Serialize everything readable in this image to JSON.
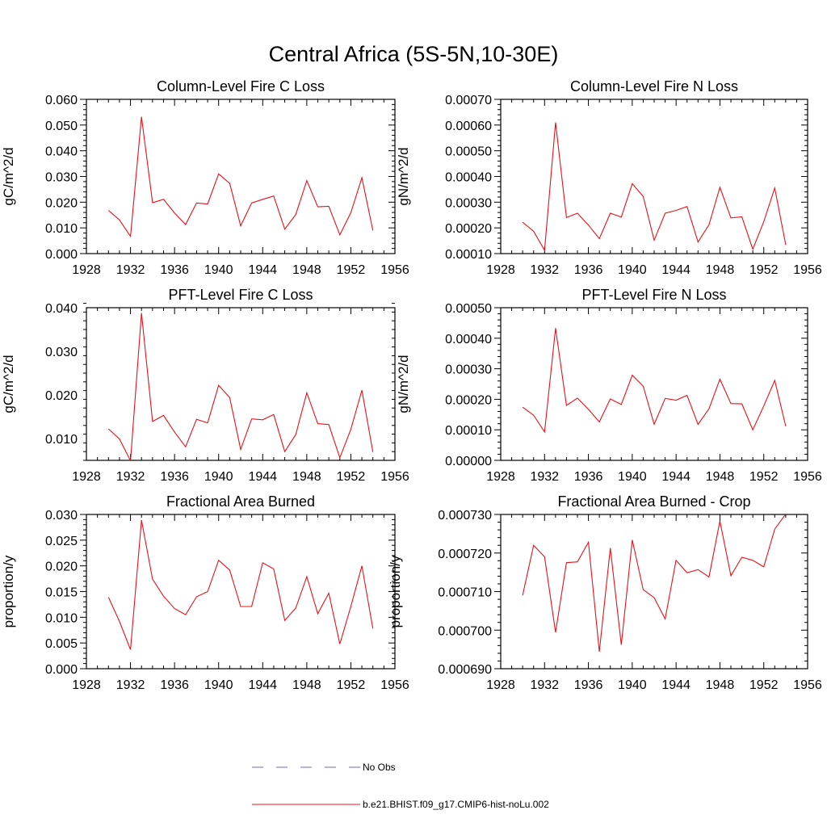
{
  "figure": {
    "title": "Central Africa (5S-5N,10-30E)",
    "series_color": "#e8101a",
    "obs_color": "#6a6ad0"
  },
  "legend": {
    "items": [
      {
        "label": "No Obs",
        "style": "dashed",
        "color": "#6a6ad0"
      },
      {
        "label": "b.e21.BHIST.f09_g17.CMIP6-hist-noLu.002",
        "style": "solid",
        "color": "#e8101a"
      }
    ]
  },
  "chart_data": [
    {
      "type": "line",
      "title": "Column-Level Fire C Loss",
      "ylabel": "gC/m^2/d",
      "xlim": [
        1928,
        1956
      ],
      "ylim": [
        0,
        0.06
      ],
      "xticks": [
        1928,
        1932,
        1936,
        1940,
        1944,
        1948,
        1952,
        1956
      ],
      "yticks": [
        0,
        0.01,
        0.02,
        0.03,
        0.04,
        0.05,
        0.06
      ],
      "ytick_labels": [
        "0.000",
        "0.010",
        "0.020",
        "0.030",
        "0.040",
        "0.050",
        "0.060"
      ],
      "x": [
        1930,
        1931,
        1932,
        1933,
        1934,
        1935,
        1936,
        1937,
        1938,
        1939,
        1940,
        1941,
        1942,
        1943,
        1944,
        1945,
        1946,
        1947,
        1948,
        1949,
        1950,
        1951,
        1952,
        1953,
        1954
      ],
      "series": [
        {
          "values": [
            0.0168,
            0.0131,
            0.0067,
            0.0532,
            0.0198,
            0.0211,
            0.0158,
            0.0113,
            0.0197,
            0.0193,
            0.031,
            0.0273,
            0.0108,
            0.0197,
            0.0211,
            0.0224,
            0.0095,
            0.0152,
            0.0284,
            0.0182,
            0.0184,
            0.0073,
            0.0159,
            0.0295,
            0.009
          ]
        }
      ]
    },
    {
      "type": "line",
      "title": "Column-Level Fire N Loss",
      "ylabel": "gN/m^2/d",
      "xlim": [
        1928,
        1956
      ],
      "ylim": [
        0.0001,
        0.0007
      ],
      "xticks": [
        1928,
        1932,
        1936,
        1940,
        1944,
        1948,
        1952,
        1956
      ],
      "yticks": [
        0.0001,
        0.0002,
        0.0003,
        0.0004,
        0.0005,
        0.0006,
        0.0007
      ],
      "ytick_labels": [
        "0.00010",
        "0.00020",
        "0.00030",
        "0.00040",
        "0.00050",
        "0.00060",
        "0.00070"
      ],
      "x": [
        1930,
        1931,
        1932,
        1933,
        1934,
        1935,
        1936,
        1937,
        1938,
        1939,
        1940,
        1941,
        1942,
        1943,
        1944,
        1945,
        1946,
        1947,
        1948,
        1949,
        1950,
        1951,
        1952,
        1953,
        1954
      ],
      "series": [
        {
          "values": [
            0.000222,
            0.000187,
            0.000113,
            0.00061,
            0.00024,
            0.000257,
            0.000211,
            0.000158,
            0.000257,
            0.000242,
            0.000372,
            0.000322,
            0.000152,
            0.000257,
            0.000268,
            0.000283,
            0.000145,
            0.000212,
            0.000358,
            0.000239,
            0.000243,
            0.000117,
            0.000224,
            0.000355,
            0.000134
          ]
        }
      ]
    },
    {
      "type": "line",
      "title": "PFT-Level Fire C Loss",
      "ylabel": "gC/m^2/d",
      "xlim": [
        1928,
        1956
      ],
      "ylim": [
        0.005,
        0.04
      ],
      "xticks": [
        1928,
        1932,
        1936,
        1940,
        1944,
        1948,
        1952,
        1956
      ],
      "yticks": [
        0.01,
        0.02,
        0.03,
        0.04
      ],
      "ytick_labels": [
        "0.010",
        "0.020",
        "0.030",
        "0.040"
      ],
      "x": [
        1930,
        1931,
        1932,
        1933,
        1934,
        1935,
        1936,
        1937,
        1938,
        1939,
        1940,
        1941,
        1942,
        1943,
        1944,
        1945,
        1946,
        1947,
        1948,
        1949,
        1950,
        1951,
        1952,
        1953,
        1954
      ],
      "series": [
        {
          "values": [
            0.0122,
            0.0099,
            0.0049,
            0.0388,
            0.0139,
            0.0153,
            0.0115,
            0.0081,
            0.0144,
            0.0136,
            0.0222,
            0.0194,
            0.0075,
            0.0145,
            0.0143,
            0.0155,
            0.007,
            0.0109,
            0.0205,
            0.0134,
            0.0132,
            0.0056,
            0.0121,
            0.0211,
            0.0069
          ]
        }
      ]
    },
    {
      "type": "line",
      "title": "PFT-Level Fire N Loss",
      "ylabel": "gN/m^2/d",
      "xlim": [
        1928,
        1956
      ],
      "ylim": [
        0,
        0.0005
      ],
      "xticks": [
        1928,
        1932,
        1936,
        1940,
        1944,
        1948,
        1952,
        1956
      ],
      "yticks": [
        0,
        0.0001,
        0.0002,
        0.0003,
        0.0004,
        0.0005
      ],
      "ytick_labels": [
        "0.00000",
        "0.00010",
        "0.00020",
        "0.00030",
        "0.00040",
        "0.00050"
      ],
      "x": [
        1930,
        1931,
        1932,
        1933,
        1934,
        1935,
        1936,
        1937,
        1938,
        1939,
        1940,
        1941,
        1942,
        1943,
        1944,
        1945,
        1946,
        1947,
        1948,
        1949,
        1950,
        1951,
        1952,
        1953,
        1954
      ],
      "series": [
        {
          "values": [
            0.000174,
            0.000148,
            9.3e-05,
            0.000433,
            0.00018,
            0.000204,
            0.000167,
            0.000126,
            0.000201,
            0.000183,
            0.000279,
            0.000243,
            0.000118,
            0.000203,
            0.000197,
            0.000213,
            0.000118,
            0.000169,
            0.000266,
            0.000186,
            0.000185,
            0.0001,
            0.000178,
            0.000262,
            0.000112
          ]
        }
      ]
    },
    {
      "type": "line",
      "title": "Fractional Area Burned",
      "ylabel": "proportion/y",
      "xlim": [
        1928,
        1956
      ],
      "ylim": [
        0,
        0.03
      ],
      "xticks": [
        1928,
        1932,
        1936,
        1940,
        1944,
        1948,
        1952,
        1956
      ],
      "yticks": [
        0,
        0.005,
        0.01,
        0.015,
        0.02,
        0.025,
        0.03
      ],
      "ytick_labels": [
        "0.000",
        "0.005",
        "0.010",
        "0.015",
        "0.020",
        "0.025",
        "0.030"
      ],
      "x": [
        1930,
        1931,
        1932,
        1933,
        1934,
        1935,
        1936,
        1937,
        1938,
        1939,
        1940,
        1941,
        1942,
        1943,
        1944,
        1945,
        1946,
        1947,
        1948,
        1949,
        1950,
        1951,
        1952,
        1953,
        1954
      ],
      "series": [
        {
          "values": [
            0.0139,
            0.0092,
            0.0037,
            0.0289,
            0.0174,
            0.0141,
            0.0117,
            0.0105,
            0.014,
            0.015,
            0.0211,
            0.0192,
            0.0121,
            0.0121,
            0.0206,
            0.0194,
            0.0094,
            0.0118,
            0.0179,
            0.0107,
            0.0147,
            0.0048,
            0.0121,
            0.02,
            0.0078
          ]
        }
      ]
    },
    {
      "type": "line",
      "title": "Fractional Area Burned - Crop",
      "ylabel": "proportion/y",
      "xlim": [
        1928,
        1956
      ],
      "ylim": [
        0.00069,
        0.00073
      ],
      "xticks": [
        1928,
        1932,
        1936,
        1940,
        1944,
        1948,
        1952,
        1956
      ],
      "yticks": [
        0.00069,
        0.0007,
        0.00071,
        0.00072,
        0.00073
      ],
      "ytick_labels": [
        "0.000690",
        "0.000700",
        "0.000710",
        "0.000720",
        "0.000730"
      ],
      "x": [
        1930,
        1931,
        1932,
        1933,
        1934,
        1935,
        1936,
        1937,
        1938,
        1939,
        1940,
        1941,
        1942,
        1943,
        1944,
        1945,
        1946,
        1947,
        1948,
        1949,
        1950,
        1951,
        1952,
        1953,
        1954
      ],
      "series": [
        {
          "values": [
            0.000709,
            0.000722,
            0.000719,
            0.0006994,
            0.0007175,
            0.0007177,
            0.0007228,
            0.0006944,
            0.0007213,
            0.0006962,
            0.0007234,
            0.0007105,
            0.0007084,
            0.0007029,
            0.0007181,
            0.0007149,
            0.0007157,
            0.0007138,
            0.0007283,
            0.0007141,
            0.0007189,
            0.0007181,
            0.0007164,
            0.0007262,
            0.0007301
          ]
        }
      ]
    }
  ]
}
